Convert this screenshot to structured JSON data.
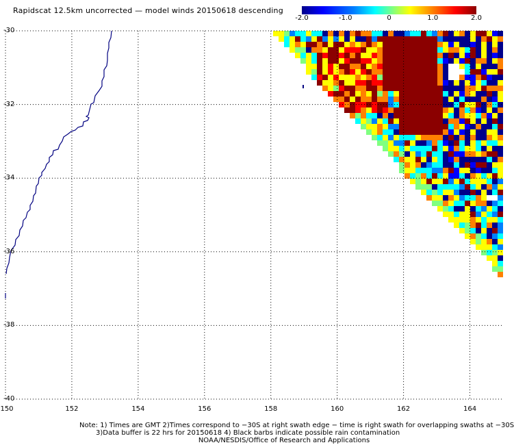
{
  "title": "Rapidscat 12.5km uncorrected — model winds 20150618 descending",
  "colorbar": {
    "ticks": [
      {
        "value": -2.0,
        "label": "-2.0"
      },
      {
        "value": -1.0,
        "label": "-1.0"
      },
      {
        "value": 0.0,
        "label": "0"
      },
      {
        "value": 1.0,
        "label": "1.0"
      },
      {
        "value": 2.0,
        "label": "2.0"
      }
    ],
    "range": [
      -2.0,
      2.0
    ],
    "colors": [
      "#00008b",
      "#0000ff",
      "#0080ff",
      "#00ffff",
      "#80ff80",
      "#ffff00",
      "#ff8000",
      "#ff0000",
      "#8b0000"
    ]
  },
  "map": {
    "lon_range": [
      150,
      165
    ],
    "lat_range": [
      -30,
      -40
    ],
    "lon_labels": [
      "150",
      "152",
      "154",
      "156",
      "158",
      "160",
      "162",
      "164"
    ],
    "lat_labels": [
      "-30",
      "-32",
      "-34",
      "-36",
      "-38",
      "-40"
    ],
    "gridlines": "dotted",
    "coastline_color": "#000080",
    "land": "Australia (east coast)"
  },
  "notes": {
    "line1": "Note: 1) Times are GMT 2)Times correspond to −30S at right swath edge − time is right swath for overlapping swaths at −30S",
    "line2": "3)Data buffer is 22 hrs for 20150618 4) Black barbs indicate possible rain contamination",
    "line3": "NOAA/NESDIS/Office of Research and Applications"
  }
}
